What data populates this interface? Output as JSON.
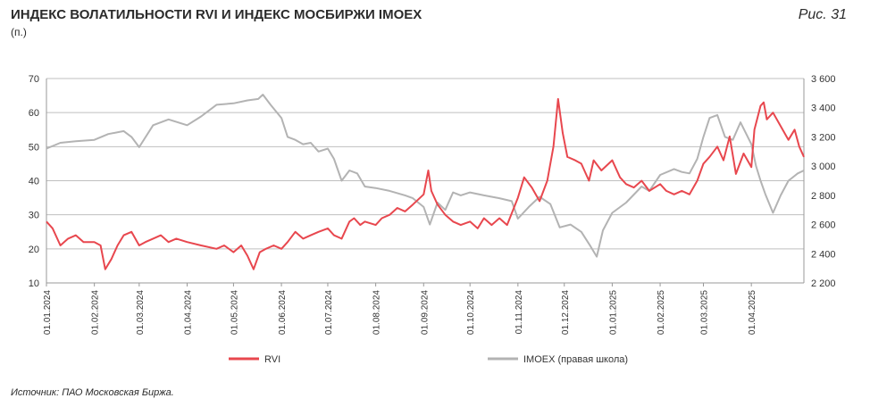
{
  "header": {
    "title": "ИНДЕКС ВОЛАТИЛЬНОСТИ RVI И ИНДЕКС МОСБИРЖИ IMOEX",
    "unit": "(п.)",
    "figure_label": "Рис. 31"
  },
  "footer": {
    "source": "Источник: ПАО Московская Биржа."
  },
  "colors": {
    "rvi": "#e8474e",
    "imoex": "#b3b3b3",
    "grid": "#bfbfbf"
  },
  "chart_data": {
    "type": "line",
    "y_left": {
      "ylim": [
        10,
        70
      ],
      "ticks": [
        "10",
        "20",
        "30",
        "40",
        "50",
        "60",
        "70"
      ]
    },
    "y_right": {
      "ylim": [
        2200,
        3600
      ],
      "ticks": [
        "2 200",
        "2 400",
        "2 600",
        "2 800",
        "3 000",
        "3 200",
        "3 400",
        "3 600"
      ]
    },
    "x_ticks": [
      "01.01.2024",
      "01.02.2024",
      "01.03.2024",
      "01.04.2024",
      "01.05.2024",
      "01.06.2024",
      "01.07.2024",
      "01.08.2024",
      "01.09.2024",
      "01.10.2024",
      "01.11.2024",
      "01.12.2024",
      "01.01.2025",
      "01.02.2025",
      "01.03.2025",
      "01.04.2025"
    ],
    "x_range": [
      "2024-01-01",
      "2025-05-05"
    ],
    "legend_position": "bottom",
    "series": [
      {
        "name": "RVI",
        "axis": "left",
        "x": [
          "2024-01-01",
          "2024-01-05",
          "2024-01-10",
          "2024-01-15",
          "2024-01-20",
          "2024-01-25",
          "2024-02-01",
          "2024-02-05",
          "2024-02-08",
          "2024-02-12",
          "2024-02-16",
          "2024-02-20",
          "2024-02-25",
          "2024-03-01",
          "2024-03-05",
          "2024-03-10",
          "2024-03-15",
          "2024-03-20",
          "2024-03-25",
          "2024-04-01",
          "2024-04-10",
          "2024-04-20",
          "2024-04-25",
          "2024-05-01",
          "2024-05-06",
          "2024-05-10",
          "2024-05-14",
          "2024-05-18",
          "2024-05-22",
          "2024-05-27",
          "2024-06-01",
          "2024-06-05",
          "2024-06-10",
          "2024-06-15",
          "2024-06-20",
          "2024-06-25",
          "2024-07-01",
          "2024-07-05",
          "2024-07-10",
          "2024-07-15",
          "2024-07-18",
          "2024-07-22",
          "2024-07-25",
          "2024-08-01",
          "2024-08-05",
          "2024-08-10",
          "2024-08-15",
          "2024-08-20",
          "2024-08-25",
          "2024-09-01",
          "2024-09-04",
          "2024-09-06",
          "2024-09-10",
          "2024-09-15",
          "2024-09-20",
          "2024-09-25",
          "2024-10-01",
          "2024-10-06",
          "2024-10-10",
          "2024-10-15",
          "2024-10-20",
          "2024-10-25",
          "2024-11-01",
          "2024-11-05",
          "2024-11-10",
          "2024-11-15",
          "2024-11-20",
          "2024-11-24",
          "2024-11-27",
          "2024-11-30",
          "2024-12-03",
          "2024-12-08",
          "2024-12-12",
          "2024-12-17",
          "2024-12-20",
          "2024-12-25",
          "2025-01-01",
          "2025-01-06",
          "2025-01-10",
          "2025-01-15",
          "2025-01-20",
          "2025-01-25",
          "2025-02-01",
          "2025-02-05",
          "2025-02-10",
          "2025-02-15",
          "2025-02-20",
          "2025-02-25",
          "2025-03-01",
          "2025-03-05",
          "2025-03-10",
          "2025-03-14",
          "2025-03-18",
          "2025-03-22",
          "2025-03-27",
          "2025-04-01",
          "2025-04-03",
          "2025-04-07",
          "2025-04-09",
          "2025-04-11",
          "2025-04-15",
          "2025-04-20",
          "2025-04-25",
          "2025-04-29",
          "2025-05-02",
          "2025-05-05"
        ],
        "values": [
          28,
          26,
          21,
          23,
          24,
          22,
          22,
          21,
          14,
          17,
          21,
          24,
          25,
          21,
          22,
          23,
          24,
          22,
          23,
          22,
          21,
          20,
          21,
          19,
          21,
          18,
          14,
          19,
          20,
          21,
          20,
          22,
          25,
          23,
          24,
          25,
          26,
          24,
          23,
          28,
          29,
          27,
          28,
          27,
          29,
          30,
          32,
          31,
          33,
          36,
          43,
          37,
          33,
          30,
          28,
          27,
          28,
          26,
          29,
          27,
          29,
          27,
          35,
          41,
          38,
          34,
          40,
          50,
          64,
          54,
          47,
          46,
          45,
          40,
          46,
          43,
          46,
          41,
          39,
          38,
          40,
          37,
          39,
          37,
          36,
          37,
          36,
          40,
          45,
          47,
          50,
          46,
          53,
          42,
          48,
          44,
          55,
          62,
          63,
          58,
          60,
          56,
          52,
          55,
          50,
          47
        ]
      },
      {
        "name": "IMOEX (правая школа)",
        "axis": "right",
        "x": [
          "2024-01-01",
          "2024-01-10",
          "2024-01-20",
          "2024-02-01",
          "2024-02-10",
          "2024-02-20",
          "2024-02-25",
          "2024-03-01",
          "2024-03-10",
          "2024-03-20",
          "2024-04-01",
          "2024-04-10",
          "2024-04-20",
          "2024-05-01",
          "2024-05-10",
          "2024-05-17",
          "2024-05-20",
          "2024-05-25",
          "2024-06-01",
          "2024-06-05",
          "2024-06-10",
          "2024-06-15",
          "2024-06-20",
          "2024-06-25",
          "2024-07-01",
          "2024-07-05",
          "2024-07-10",
          "2024-07-15",
          "2024-07-20",
          "2024-07-25",
          "2024-08-01",
          "2024-08-10",
          "2024-08-20",
          "2024-08-25",
          "2024-09-01",
          "2024-09-05",
          "2024-09-10",
          "2024-09-15",
          "2024-09-20",
          "2024-09-25",
          "2024-10-01",
          "2024-10-10",
          "2024-10-20",
          "2024-10-28",
          "2024-11-01",
          "2024-11-08",
          "2024-11-15",
          "2024-11-22",
          "2024-11-28",
          "2024-12-05",
          "2024-12-12",
          "2024-12-18",
          "2024-12-22",
          "2024-12-26",
          "2025-01-01",
          "2025-01-10",
          "2025-01-20",
          "2025-01-25",
          "2025-02-01",
          "2025-02-10",
          "2025-02-15",
          "2025-02-20",
          "2025-02-25",
          "2025-03-01",
          "2025-03-05",
          "2025-03-10",
          "2025-03-15",
          "2025-03-20",
          "2025-03-25",
          "2025-04-01",
          "2025-04-04",
          "2025-04-07",
          "2025-04-10",
          "2025-04-15",
          "2025-04-20",
          "2025-04-25",
          "2025-05-01",
          "2025-05-05"
        ],
        "values": [
          3120,
          3160,
          3170,
          3180,
          3220,
          3240,
          3200,
          3130,
          3280,
          3320,
          3280,
          3340,
          3420,
          3430,
          3450,
          3460,
          3490,
          3420,
          3330,
          3200,
          3180,
          3150,
          3160,
          3100,
          3120,
          3050,
          2900,
          2970,
          2950,
          2860,
          2850,
          2830,
          2800,
          2780,
          2720,
          2600,
          2750,
          2700,
          2820,
          2800,
          2820,
          2800,
          2780,
          2760,
          2640,
          2720,
          2790,
          2740,
          2580,
          2600,
          2550,
          2450,
          2380,
          2560,
          2680,
          2750,
          2860,
          2830,
          2940,
          2980,
          2960,
          2950,
          3050,
          3200,
          3330,
          3350,
          3200,
          3180,
          3300,
          3150,
          3000,
          2900,
          2810,
          2680,
          2800,
          2900,
          2950,
          2970
        ]
      }
    ]
  }
}
